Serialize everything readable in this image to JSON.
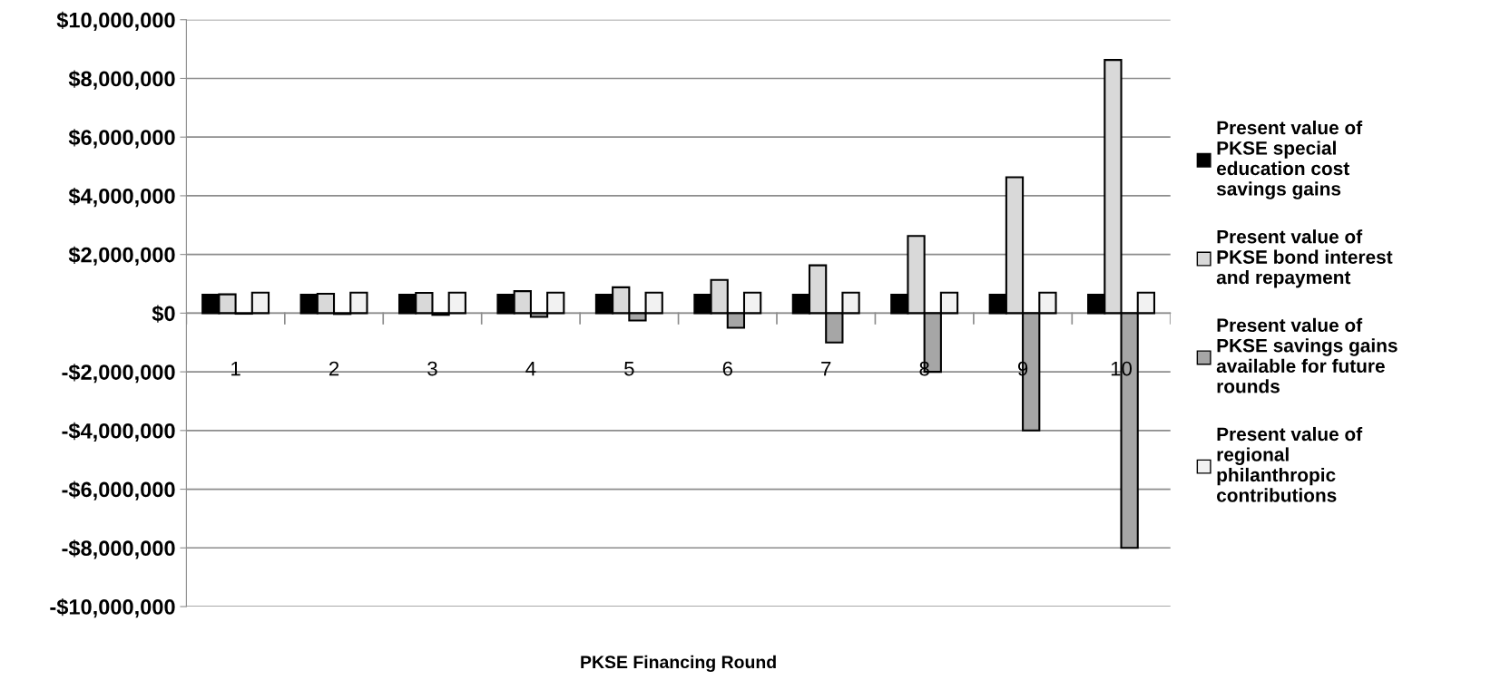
{
  "chart_data": {
    "type": "bar",
    "xlabel": "PKSE Financing Round",
    "categories": [
      "1",
      "2",
      "3",
      "4",
      "5",
      "6",
      "7",
      "8",
      "9",
      "10"
    ],
    "series": [
      {
        "name": "Present value of PKSE special education cost savings gains",
        "color": "#000000",
        "values": [
          630000,
          630000,
          630000,
          630000,
          630000,
          630000,
          630000,
          630000,
          630000,
          630000
        ]
      },
      {
        "name": "Present value of PKSE bond interest and repayment",
        "color": "#d9d9d9",
        "values": [
          640000,
          660000,
          690000,
          750000,
          880000,
          1130000,
          1630000,
          2630000,
          4630000,
          8630000
        ]
      },
      {
        "name": "Present value of PKSE savings gains available for future rounds",
        "color": "#a6a6a6",
        "values": [
          -20000,
          -30000,
          -60000,
          -130000,
          -250000,
          -500000,
          -1000000,
          -2000000,
          -4000000,
          -8000000
        ]
      },
      {
        "name": "Present value of regional philanthropic contributions",
        "color": "#f2f2f2",
        "values": [
          700000,
          700000,
          700000,
          700000,
          700000,
          700000,
          700000,
          700000,
          700000,
          700000
        ]
      }
    ],
    "ylim": [
      -10000000,
      10000000
    ],
    "yticks": [
      {
        "value": -10000000,
        "label": "-$10,000,000"
      },
      {
        "value": -8000000,
        "label": "-$8,000,000"
      },
      {
        "value": -6000000,
        "label": "-$6,000,000"
      },
      {
        "value": -4000000,
        "label": "-$4,000,000"
      },
      {
        "value": -2000000,
        "label": "-$2,000,000"
      },
      {
        "value": 0,
        "label": "$0"
      },
      {
        "value": 2000000,
        "label": "$2,000,000"
      },
      {
        "value": 4000000,
        "label": "$4,000,000"
      },
      {
        "value": 6000000,
        "label": "$6,000,000"
      },
      {
        "value": 8000000,
        "label": "$8,000,000"
      },
      {
        "value": 10000000,
        "label": "$10,000,000"
      }
    ],
    "grid": "y",
    "legend": "right"
  }
}
